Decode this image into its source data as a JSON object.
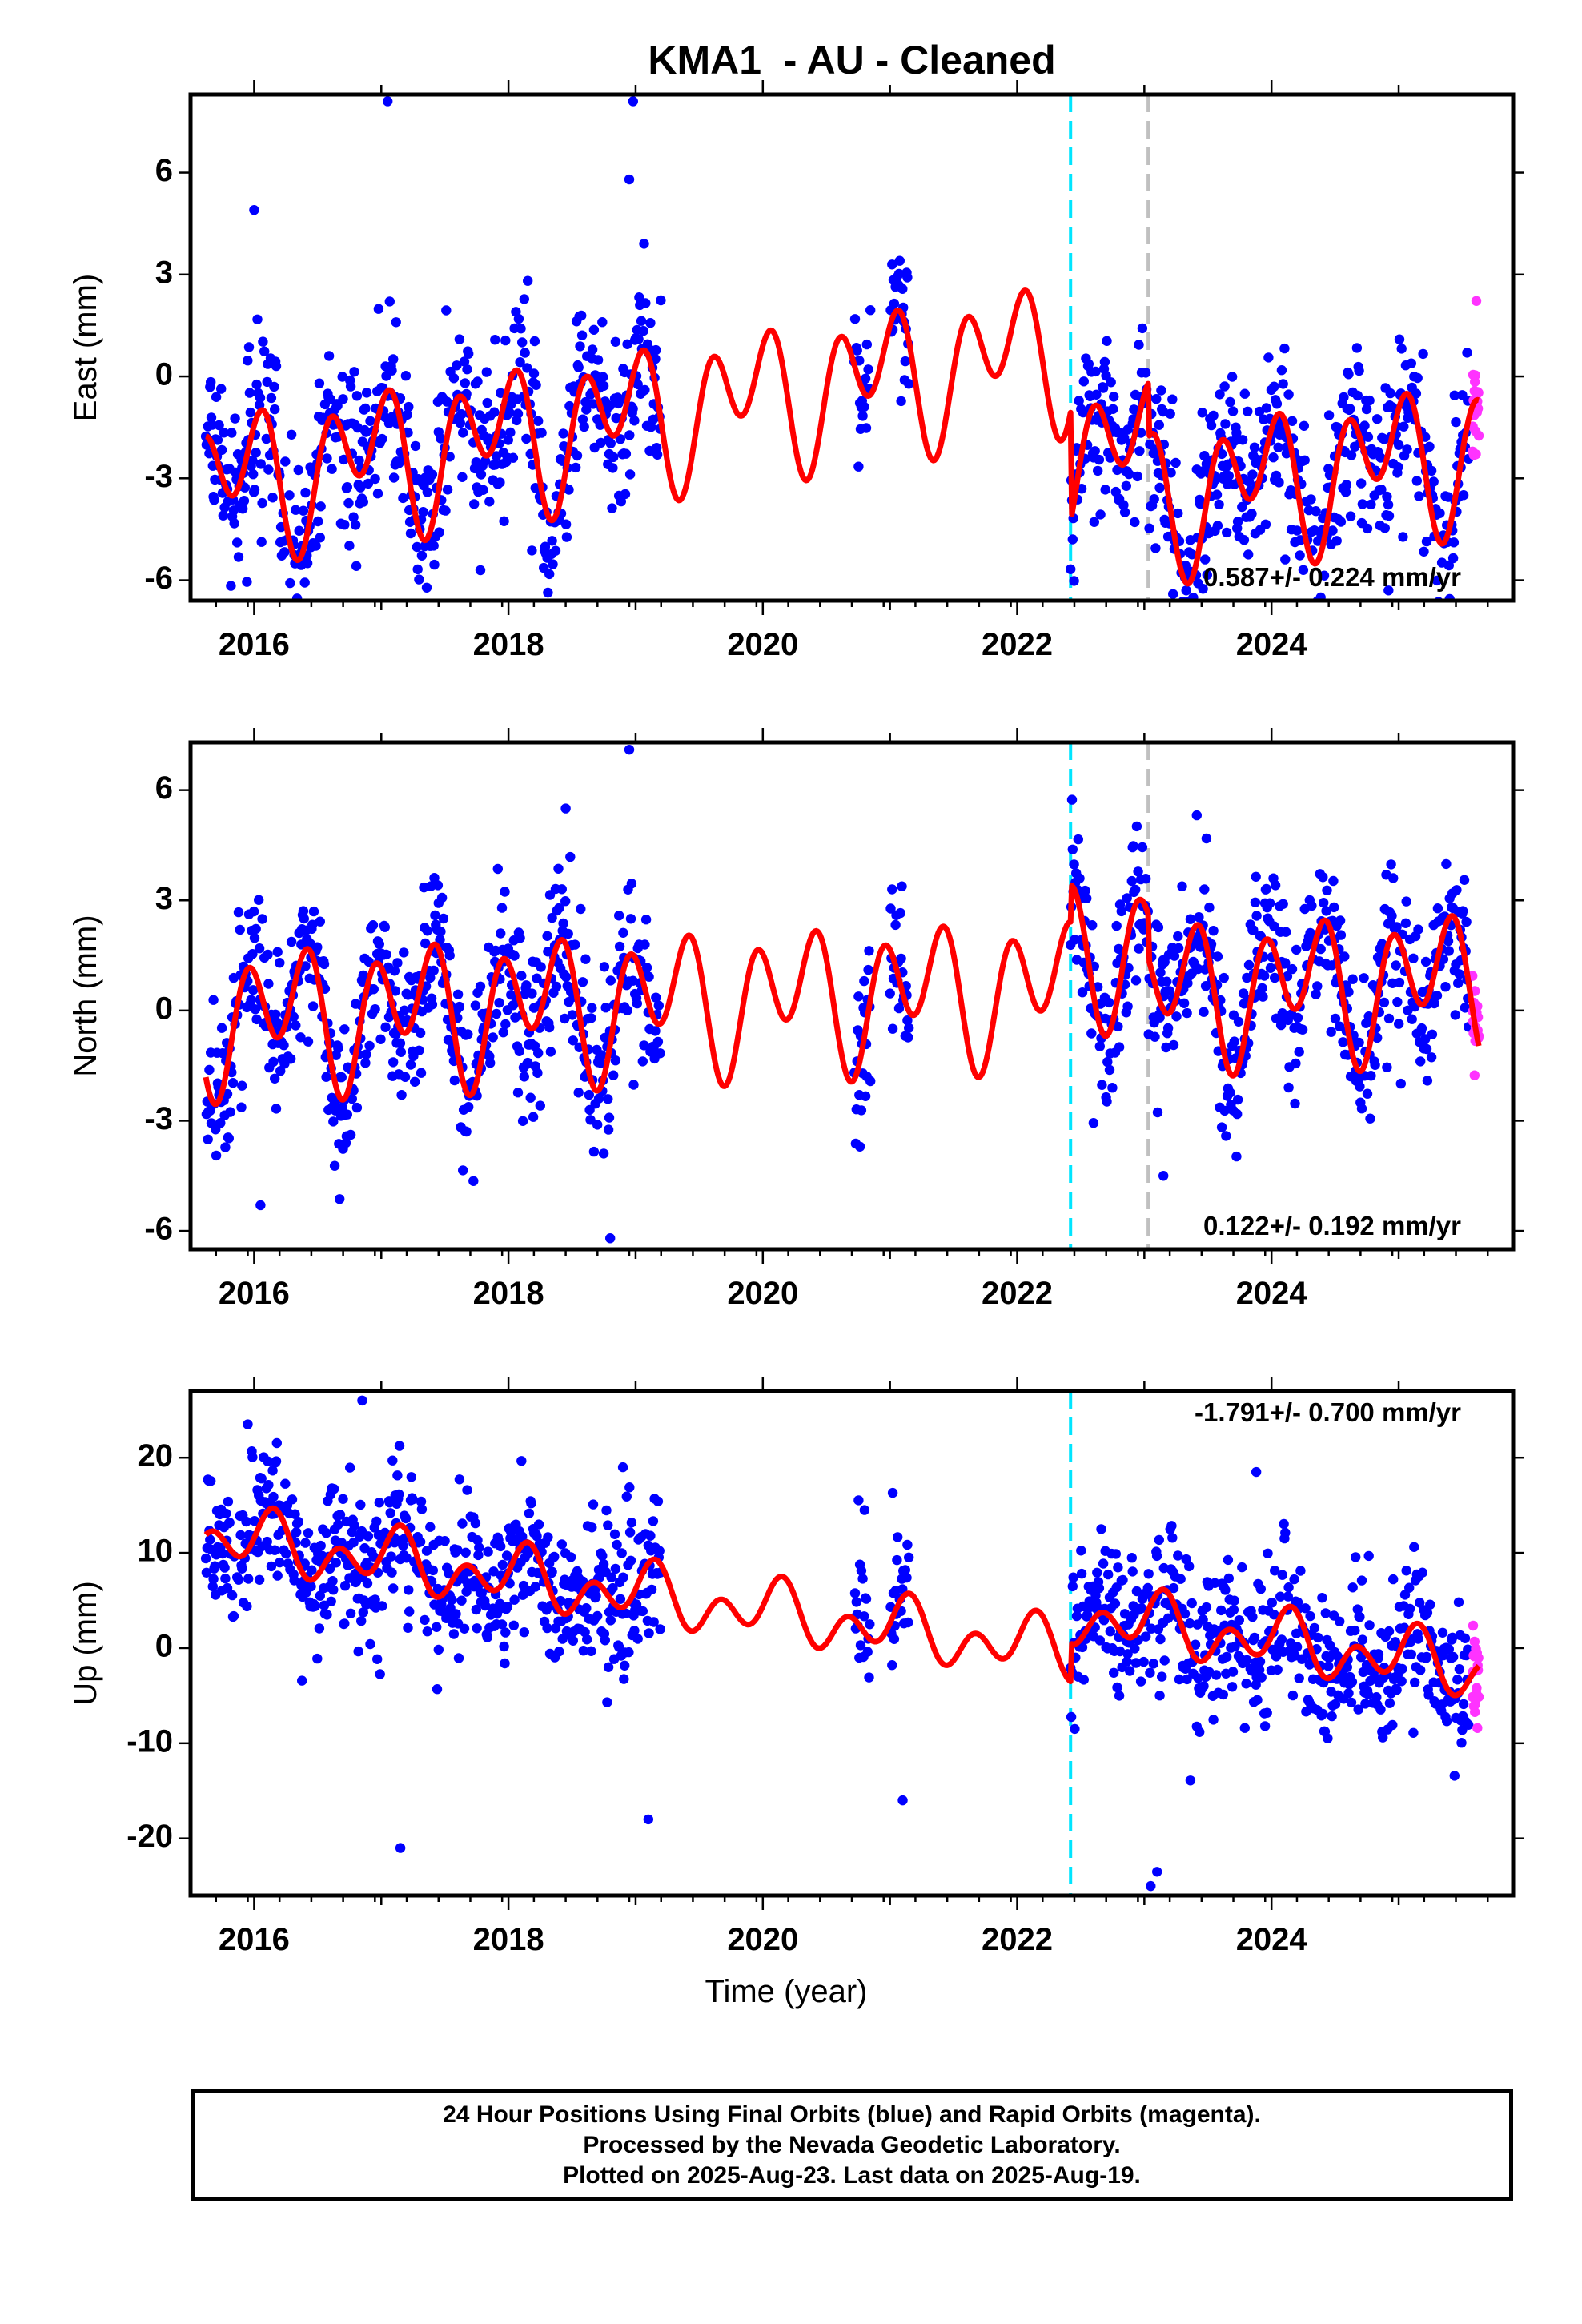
{
  "title": "KMA1  - AU - Cleaned",
  "footer": {
    "line1": "24 Hour Positions Using Final Orbits (blue) and Rapid Orbits (magenta).",
    "line2": "Processed by the Nevada Geodetic Laboratory.",
    "line3": "Plotted on 2025-Aug-23. Last data on 2025-Aug-19."
  },
  "colors": {
    "final_orbits": "#0000ff",
    "rapid_orbits": "#ff33ff",
    "model_fit": "#ff0000",
    "event_line_1": "#00e5ff",
    "event_line_2": "#c0c0c0"
  },
  "chart_data": [
    {
      "type": "scatter",
      "component": "east",
      "ylabel": "East (mm)",
      "xlabel": "",
      "xlim": [
        2015.5,
        2025.9
      ],
      "ylim": [
        -6.6,
        8.3
      ],
      "xticks": [
        2016,
        2018,
        2020,
        2022,
        2024
      ],
      "xtick_labels": [
        "2016",
        "2018",
        "2020",
        "2022",
        "2024"
      ],
      "yticks": [
        -6,
        -3,
        0,
        3,
        6
      ],
      "ytick_labels": [
        "-6",
        "-3",
        "0",
        "3",
        "6"
      ],
      "rate_label": "0.587+/- 0.224 mm/yr",
      "rate_position": "bottom-right",
      "event_lines": [
        2022.42,
        2023.03
      ],
      "model": {
        "trend_mm_per_yr": 0.587,
        "offset_mm": -0.3,
        "annual_sin": -0.8,
        "annual_cos": 0.8,
        "semiannual_sin": 1.4,
        "semiannual_cos": 0.7,
        "steps": [
          [
            2022.42,
            -3.2
          ],
          [
            2023.03,
            -1.6
          ]
        ]
      },
      "series": [
        {
          "name": "Final Orbits",
          "noise_mm": 1.3,
          "intervals": [
            [
              2015.62,
              2019.2
            ],
            [
              2020.72,
              2020.85
            ],
            [
              2021.0,
              2021.15
            ],
            [
              2022.42,
              2025.55
            ]
          ]
        },
        {
          "name": "Rapid Orbits",
          "noise_mm": 1.0,
          "intervals": [
            [
              2025.58,
              2025.63
            ]
          ]
        }
      ],
      "outliers": [
        [
          2017.05,
          8.1
        ],
        [
          2018.98,
          8.1
        ],
        [
          2018.95,
          5.8
        ],
        [
          2016.0,
          4.9
        ],
        [
          2024.92,
          -6.3
        ]
      ]
    },
    {
      "type": "scatter",
      "component": "north",
      "ylabel": "North (mm)",
      "xlabel": "",
      "xlim": [
        2015.5,
        2025.9
      ],
      "ylim": [
        -6.5,
        7.3
      ],
      "xticks": [
        2016,
        2018,
        2020,
        2022,
        2024
      ],
      "xtick_labels": [
        "2016",
        "2018",
        "2020",
        "2022",
        "2024"
      ],
      "yticks": [
        -6,
        -3,
        0,
        3,
        6
      ],
      "ytick_labels": [
        "-6",
        "-3",
        "0",
        "3",
        "6"
      ],
      "rate_label": "0.122+/- 0.192 mm/yr",
      "rate_position": "bottom-right",
      "event_lines": [
        2022.42,
        2023.03
      ],
      "model": {
        "trend_mm_per_yr": 0.122,
        "offset_mm": 0.4,
        "annual_sin": 0.9,
        "annual_cos": 0.1,
        "semiannual_sin": -1.0,
        "semiannual_cos": 1.1,
        "steps": [
          [
            2022.42,
            1.0
          ],
          [
            2023.03,
            -1.2
          ]
        ]
      },
      "series": [
        {
          "name": "Final Orbits",
          "noise_mm": 1.1,
          "intervals": [
            [
              2015.62,
              2019.2
            ],
            [
              2020.72,
              2020.85
            ],
            [
              2021.0,
              2021.15
            ],
            [
              2022.42,
              2025.55
            ]
          ]
        },
        {
          "name": "Rapid Orbits",
          "noise_mm": 0.6,
          "intervals": [
            [
              2025.58,
              2025.63
            ]
          ]
        }
      ],
      "outliers": [
        [
          2018.95,
          7.1
        ],
        [
          2018.45,
          5.5
        ],
        [
          2016.05,
          -5.3
        ],
        [
          2018.8,
          -6.2
        ],
        [
          2023.15,
          -4.5
        ]
      ]
    },
    {
      "type": "scatter",
      "component": "up",
      "ylabel": "Up (mm)",
      "xlabel": "Time (year)",
      "xlim": [
        2015.5,
        2025.9
      ],
      "ylim": [
        -26,
        27
      ],
      "xticks": [
        2016,
        2018,
        2020,
        2022,
        2024
      ],
      "xtick_labels": [
        "2016",
        "2018",
        "2020",
        "2022",
        "2024"
      ],
      "yticks": [
        -20,
        -10,
        0,
        10,
        20
      ],
      "ytick_labels": [
        "-20",
        "-10",
        "0",
        "10",
        "20"
      ],
      "rate_label": "-1.791+/- 0.700 mm/yr",
      "rate_position": "top-right",
      "event_lines": [
        2022.42
      ],
      "model": {
        "trend_mm_per_yr": -1.791,
        "offset_mm": 3.0,
        "annual_sin": 1.0,
        "annual_cos": 1.5,
        "semiannual_sin": 2.0,
        "semiannual_cos": -1.0,
        "steps": [
          [
            2022.42,
            4.0
          ]
        ]
      },
      "series": [
        {
          "name": "Final Orbits",
          "noise_mm": 4.0,
          "intervals": [
            [
              2015.62,
              2019.2
            ],
            [
              2020.72,
              2020.85
            ],
            [
              2021.0,
              2021.15
            ],
            [
              2022.42,
              2025.55
            ]
          ]
        },
        {
          "name": "Rapid Orbits",
          "noise_mm": 3.5,
          "intervals": [
            [
              2025.58,
              2025.63
            ]
          ]
        }
      ],
      "outliers": [
        [
          2016.85,
          26.0
        ],
        [
          2015.95,
          23.5
        ],
        [
          2018.9,
          19.0
        ],
        [
          2020.8,
          14.5
        ],
        [
          2023.88,
          18.5
        ],
        [
          2017.15,
          -21.0
        ],
        [
          2023.05,
          -25.0
        ],
        [
          2023.1,
          -23.5
        ],
        [
          2021.1,
          -16.0
        ],
        [
          2019.1,
          -18.0
        ]
      ]
    }
  ]
}
